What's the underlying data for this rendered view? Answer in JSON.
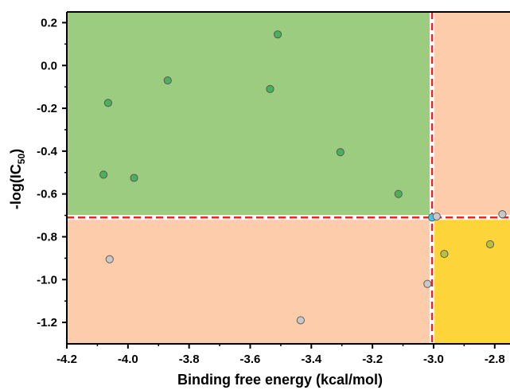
{
  "chart_data": {
    "type": "scatter",
    "xlabel": "Binding free energy (kcal/mol)",
    "ylabel": {
      "prefix": "-log(IC",
      "subscript": "50",
      "suffix": ")"
    },
    "xlim": [
      -4.2,
      -2.75
    ],
    "ylim": [
      -1.3,
      0.25
    ],
    "xticks": [
      -4.2,
      -4.0,
      -3.8,
      -3.6,
      -3.4,
      -3.2,
      -3.0,
      -2.8
    ],
    "xtick_labels": [
      "-4.2",
      "-4.0",
      "-3.8",
      "-3.6",
      "-3.4",
      "-3.2",
      "-3.0",
      "-2.8"
    ],
    "yticks": [
      0.2,
      0.0,
      -0.2,
      -0.4,
      -0.6,
      -0.8,
      -1.0,
      -1.2
    ],
    "ytick_labels": [
      "0.2",
      "0.0",
      "-0.2",
      "-0.4",
      "-0.6",
      "-0.8",
      "-1.0",
      "-1.2"
    ],
    "threshold_x": -3.005,
    "threshold_y": -0.71,
    "grid": false,
    "regions": [
      {
        "quadrant": "upper-left",
        "color": "#9ccc7f"
      },
      {
        "quadrant": "upper-right",
        "color": "#fdccaa"
      },
      {
        "quadrant": "lower-left",
        "color": "#fdccaa"
      },
      {
        "quadrant": "lower-right",
        "color": "#fdd53a"
      }
    ],
    "threshold_line_color": "#e8262a",
    "points": [
      {
        "x": -4.08,
        "y": -0.51,
        "color": "#4caf5c"
      },
      {
        "x": -4.065,
        "y": -0.175,
        "color": "#4caf5c"
      },
      {
        "x": -3.98,
        "y": -0.525,
        "color": "#4caf5c"
      },
      {
        "x": -3.87,
        "y": -0.07,
        "color": "#4caf5c"
      },
      {
        "x": -3.535,
        "y": -0.11,
        "color": "#4caf5c"
      },
      {
        "x": -3.51,
        "y": 0.145,
        "color": "#4caf5c"
      },
      {
        "x": -3.305,
        "y": -0.405,
        "color": "#4caf5c"
      },
      {
        "x": -3.115,
        "y": -0.6,
        "color": "#4caf5c"
      },
      {
        "x": -3.005,
        "y": -0.71,
        "color": "#40c8e8"
      },
      {
        "x": -2.99,
        "y": -0.705,
        "color": "#c8c8c8"
      },
      {
        "x": -2.775,
        "y": -0.695,
        "color": "#c8c8c8"
      },
      {
        "x": -4.06,
        "y": -0.905,
        "color": "#c8c8c8"
      },
      {
        "x": -3.435,
        "y": -1.19,
        "color": "#c8c8c8"
      },
      {
        "x": -3.02,
        "y": -1.02,
        "color": "#c8c8c8"
      },
      {
        "x": -2.965,
        "y": -0.88,
        "color": "#b5c040"
      },
      {
        "x": -2.815,
        "y": -0.835,
        "color": "#b5c040"
      }
    ]
  }
}
